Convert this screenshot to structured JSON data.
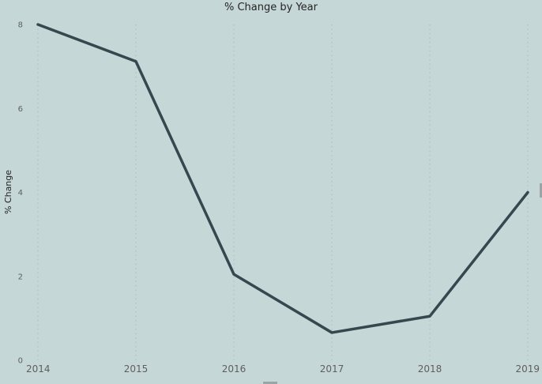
{
  "chart_data": {
    "type": "line",
    "title": "% Change by Year",
    "xlabel": "",
    "ylabel": "% Change",
    "x": [
      "2014",
      "2015",
      "2016",
      "2017",
      "2018",
      "2019"
    ],
    "series": [
      {
        "values": [
          8.0,
          7.12,
          2.05,
          0.66,
          1.05,
          4.0
        ],
        "color": "#37474f"
      }
    ],
    "ylim": [
      0,
      8
    ],
    "yticks": [
      0,
      2,
      4,
      6,
      8
    ],
    "grid": "vertical-dotted",
    "legend": "none",
    "background": "#c5d8d7"
  }
}
